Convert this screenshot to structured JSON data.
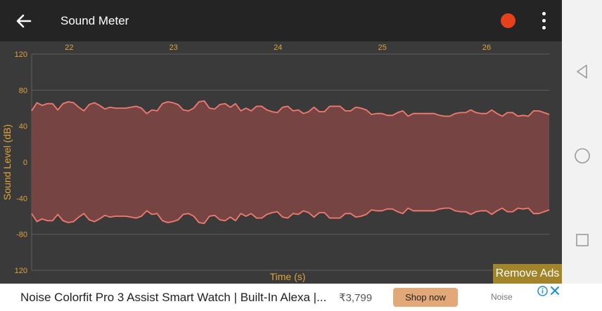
{
  "app": {
    "title": "Sound Meter",
    "record_color": "#e8401c"
  },
  "chart_data": {
    "type": "area",
    "title": "",
    "xlabel": "Time (s)",
    "ylabel": "Sound Level (dB)",
    "x_ticks": [
      "22",
      "23",
      "24",
      "25",
      "26"
    ],
    "y_ticks": [
      "120",
      "80",
      "40",
      "0",
      "-40",
      "-80",
      "120"
    ],
    "y_range": [
      -120,
      120
    ],
    "x_range": [
      21.64,
      26.6
    ],
    "grid": "horizontal",
    "series": [
      {
        "values": [
          57,
          66,
          63,
          65,
          65,
          58,
          65,
          67,
          66,
          61,
          57,
          64,
          66,
          63,
          59,
          61,
          60,
          60,
          60,
          61,
          62,
          60,
          54,
          58,
          57,
          65,
          67,
          66,
          64,
          58,
          57,
          60,
          67,
          68,
          60,
          59,
          64,
          65,
          61,
          65,
          57,
          60,
          57,
          62,
          62,
          58,
          56,
          55,
          61,
          62,
          57,
          58,
          54,
          56,
          61,
          56,
          56,
          62,
          62,
          62,
          57,
          57,
          61,
          60,
          58,
          53,
          54,
          54,
          52,
          52,
          55,
          57,
          51,
          54,
          54,
          54,
          54,
          54,
          52,
          51,
          51,
          54,
          55,
          55,
          58,
          55,
          54,
          54,
          58,
          54,
          51,
          55,
          55,
          51,
          52,
          51,
          57,
          57,
          55,
          53
        ]
      }
    ],
    "colors": {
      "fill": "#7a4545",
      "line": "#f27a6e",
      "axis_text": "#e0a33a",
      "grid": "#5e5e5e"
    }
  },
  "remove_ads": "Remove Ads",
  "ad": {
    "title": "Noise Colorfit Pro 3 Assist Smart Watch | Built-In Alexa |...",
    "price": "₹3,799",
    "cta": "Shop now",
    "brand": "Noise"
  },
  "icons": {
    "back": "arrow-left-icon",
    "menu": "more-vertical-icon",
    "nav_back": "triangle-back-icon",
    "nav_home": "circle-home-icon",
    "nav_recents": "square-recents-icon",
    "ad_info": "info-icon",
    "ad_close": "close-icon"
  }
}
